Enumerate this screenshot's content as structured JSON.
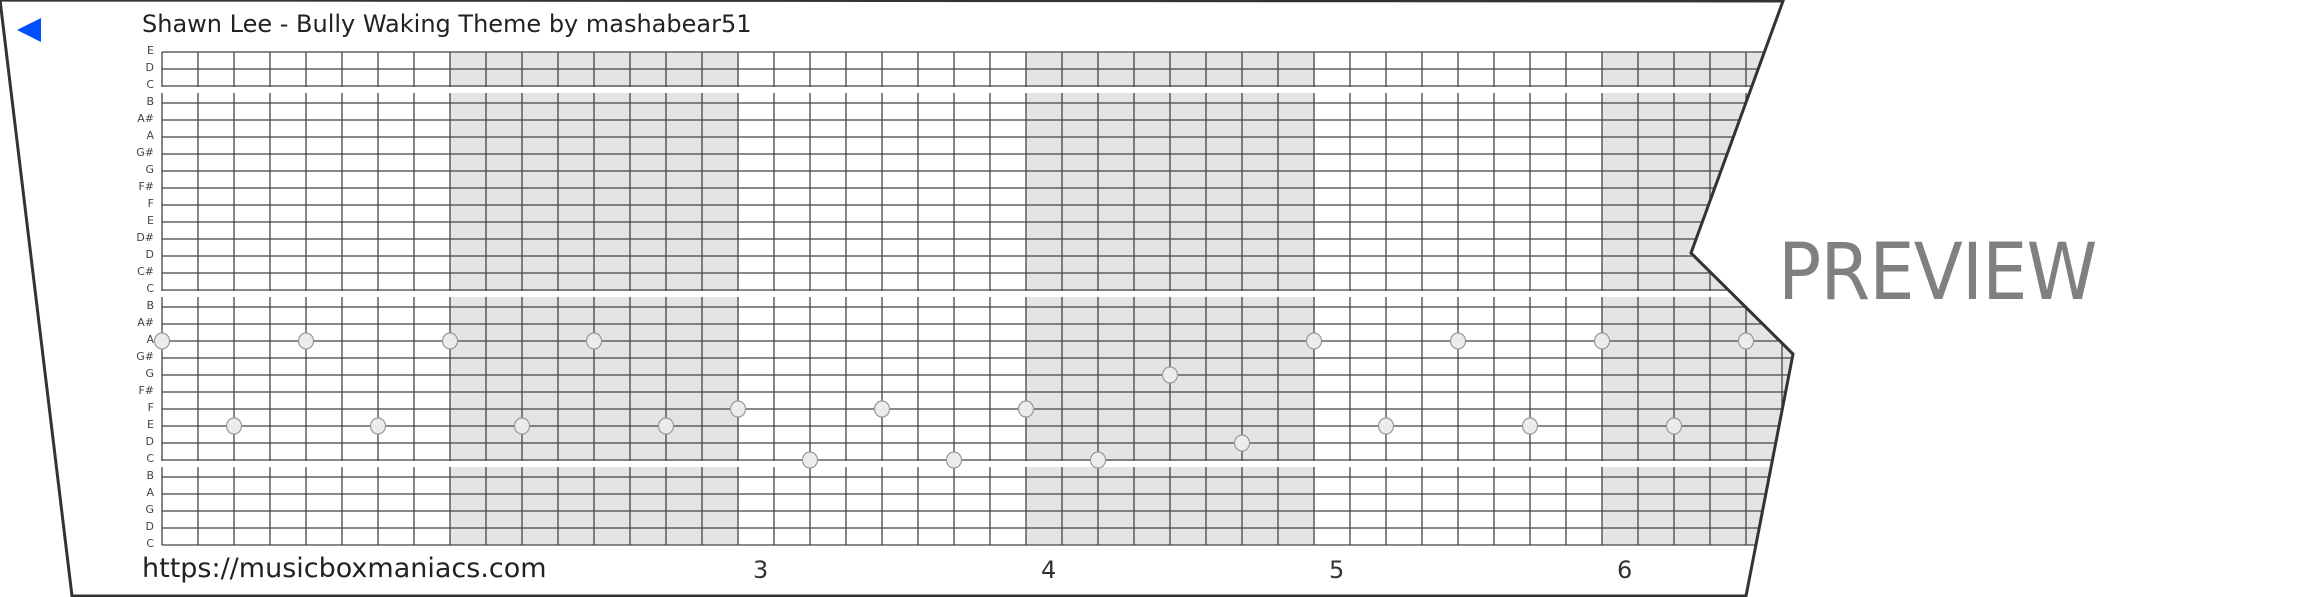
{
  "header": {
    "title": "Shawn Lee - Bully Waking Theme by mashabear51",
    "back_icon": "back-triangle-icon",
    "back_color": "#0050ff"
  },
  "watermark": "PREVIEW",
  "footer": {
    "url": "https://musicboxmaniacs.com",
    "measures": [
      {
        "label": "3",
        "start_column": 16
      },
      {
        "label": "4",
        "start_column": 24
      },
      {
        "label": "5",
        "start_column": 32
      },
      {
        "label": "6",
        "start_column": 40
      }
    ]
  },
  "strip": {
    "row_labels": [
      "E",
      "D",
      "C",
      "B",
      "A#",
      "A",
      "G#",
      "G",
      "F#",
      "F",
      "E",
      "D#",
      "D",
      "C#",
      "C",
      "B",
      "A#",
      "A",
      "G#",
      "G",
      "F#",
      "F",
      "E",
      "D",
      "C",
      "B",
      "A",
      "G",
      "D",
      "C"
    ],
    "section_breaks_after_row": [
      2,
      14,
      24
    ],
    "beats_per_measure": 8,
    "shade_color": "#e4e4e4",
    "notes": [
      {
        "column": 0,
        "row": 17,
        "pitch": "A"
      },
      {
        "column": 2,
        "row": 22,
        "pitch": "E"
      },
      {
        "column": 4,
        "row": 17,
        "pitch": "A"
      },
      {
        "column": 6,
        "row": 22,
        "pitch": "E"
      },
      {
        "column": 8,
        "row": 17,
        "pitch": "A"
      },
      {
        "column": 10,
        "row": 22,
        "pitch": "E"
      },
      {
        "column": 12,
        "row": 17,
        "pitch": "A"
      },
      {
        "column": 14,
        "row": 22,
        "pitch": "E"
      },
      {
        "column": 16,
        "row": 21,
        "pitch": "F"
      },
      {
        "column": 18,
        "row": 24,
        "pitch": "C"
      },
      {
        "column": 20,
        "row": 21,
        "pitch": "F"
      },
      {
        "column": 22,
        "row": 24,
        "pitch": "C"
      },
      {
        "column": 24,
        "row": 21,
        "pitch": "F"
      },
      {
        "column": 26,
        "row": 24,
        "pitch": "C"
      },
      {
        "column": 28,
        "row": 19,
        "pitch": "G"
      },
      {
        "column": 30,
        "row": 23,
        "pitch": "D"
      },
      {
        "column": 32,
        "row": 17,
        "pitch": "A"
      },
      {
        "column": 34,
        "row": 22,
        "pitch": "E"
      },
      {
        "column": 36,
        "row": 17,
        "pitch": "A"
      },
      {
        "column": 38,
        "row": 22,
        "pitch": "E"
      },
      {
        "column": 40,
        "row": 17,
        "pitch": "A"
      },
      {
        "column": 42,
        "row": 22,
        "pitch": "E"
      },
      {
        "column": 44,
        "row": 17,
        "pitch": "A"
      }
    ]
  }
}
